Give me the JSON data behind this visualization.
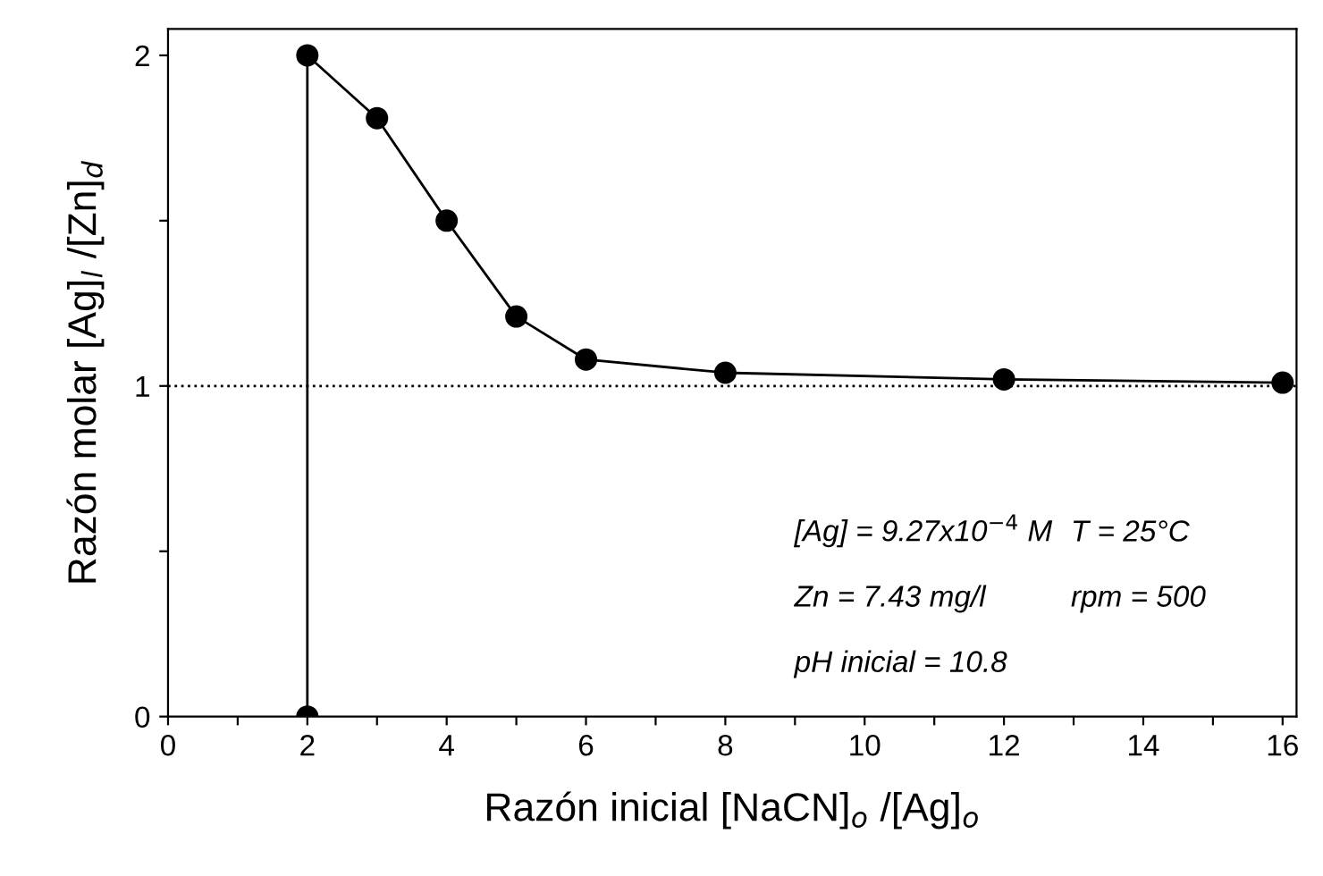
{
  "chart_data": {
    "type": "line",
    "xlabel": "Razón inicial [NaCN]$_{o}$ /[Ag]$_{o}$",
    "ylabel": "Razón molar [Ag]$_{l}$ /[Zn]$_{d}$",
    "series": [
      {
        "color": "#000000",
        "x": [
          2,
          2,
          3,
          4,
          5,
          6,
          8,
          12,
          16
        ],
        "values": [
          0,
          2.0,
          1.81,
          1.5,
          1.21,
          1.08,
          1.04,
          1.02,
          1.01
        ]
      }
    ],
    "marker": "circle",
    "line_style": "solid",
    "grid": false,
    "xlim": [
      0,
      16.2
    ],
    "ylim": [
      0,
      2.08
    ],
    "xticks": [
      0,
      {
        "value": 1,
        "label": null
      },
      2,
      {
        "value": 3,
        "label": null
      },
      4,
      {
        "value": 5,
        "label": null
      },
      6,
      {
        "value": 7,
        "label": null
      },
      8,
      {
        "value": 9,
        "label": null
      },
      10,
      {
        "value": 11,
        "label": null
      },
      12,
      {
        "value": 13,
        "label": null
      },
      14,
      {
        "value": 15,
        "label": null
      },
      16
    ],
    "yticks": [
      0,
      {
        "value": 0.5,
        "label": null
      },
      1,
      {
        "value": 1.5,
        "label": null
      },
      2
    ],
    "ref_lines": [
      {
        "axis": "y",
        "value": 1,
        "line_style": "dotted",
        "color": "#000000"
      }
    ],
    "annotations": [
      "[Ag] = 9.27x10$^{−4}$ M",
      "T = 25°C",
      "Zn = 7.43 mg/l",
      "rpm = 500",
      "pH inicial = 10.8"
    ]
  }
}
